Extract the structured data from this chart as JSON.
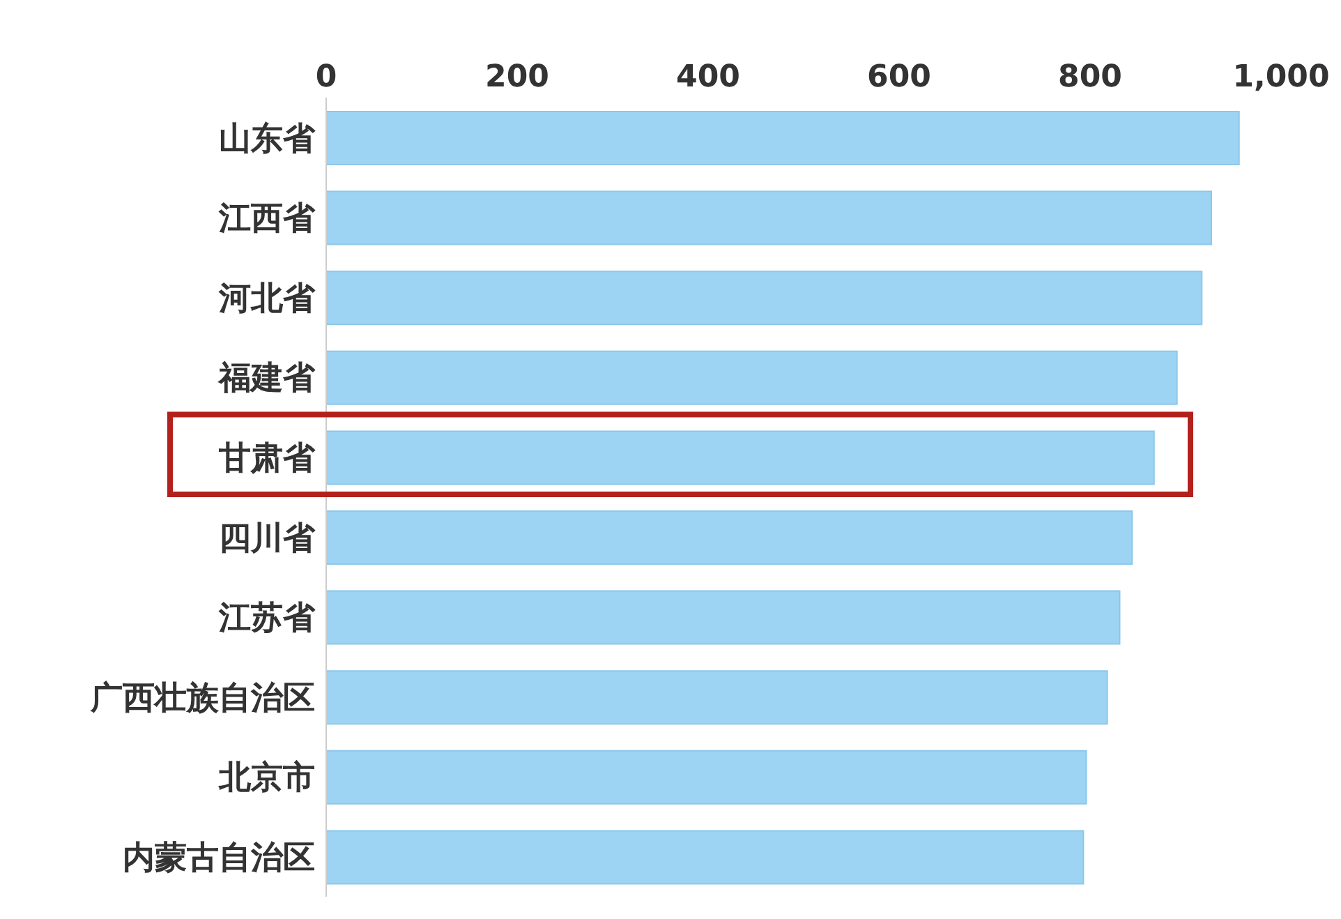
{
  "chart_data": {
    "type": "bar",
    "orientation": "horizontal",
    "categories": [
      "山东省",
      "江西省",
      "河北省",
      "福建省",
      "甘肃省",
      "四川省",
      "江苏省",
      "广西壮族自治区",
      "北京市",
      "内蒙古自治区"
    ],
    "values": [
      956,
      927,
      917,
      891,
      867,
      844,
      831,
      818,
      796,
      793
    ],
    "color": "#9dd4f3",
    "bands": [
      {
        "axis": "y",
        "from": "甘肃省",
        "to": "甘肃省",
        "color": "#b3211c"
      }
    ],
    "xlim": [
      0,
      1000
    ],
    "xticks": [
      0,
      200,
      400,
      600,
      800,
      {
        "value": 1000,
        "label": "1,000"
      }
    ]
  }
}
